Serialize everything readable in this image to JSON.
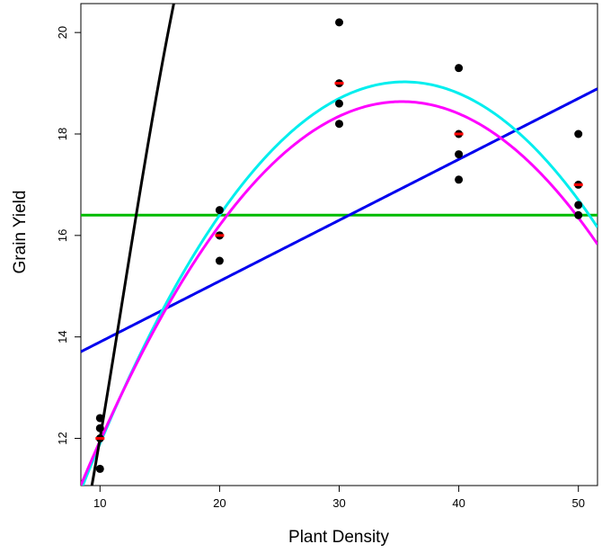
{
  "chart_data": {
    "type": "scatter",
    "title": "",
    "xlabel": "Plant Density",
    "ylabel": "Grain Yield",
    "xlim": [
      8.4,
      51.6
    ],
    "ylim": [
      11.07,
      20.57
    ],
    "x_ticks": [
      "10",
      "20",
      "30",
      "40",
      "50"
    ],
    "y_ticks": [
      "12",
      "14",
      "16",
      "18",
      "20"
    ],
    "grid": false,
    "points": {
      "name": "",
      "color": "#000000",
      "x": [
        10,
        10,
        10,
        10,
        20,
        20,
        20,
        20,
        30,
        30,
        30,
        30,
        40,
        40,
        40,
        40,
        50,
        50,
        50,
        50
      ],
      "y": [
        11.4,
        12.2,
        12.4,
        12.0,
        15.5,
        16.0,
        16.5,
        16.0,
        18.2,
        18.6,
        20.2,
        19.0,
        17.1,
        17.6,
        19.3,
        18.0,
        16.4,
        16.6,
        18.0,
        17.0
      ]
    },
    "means": {
      "name": "",
      "color": "#ff0000",
      "x": [
        10,
        20,
        30,
        40,
        50
      ],
      "y": [
        12.0,
        16.0,
        19.0,
        18.0,
        17.0
      ]
    },
    "fitted_curves": [
      {
        "name": "",
        "color": "#00bb00",
        "degree": 0,
        "coefficients": [
          16.4
        ]
      },
      {
        "name": "",
        "color": "#0000ee",
        "degree": 1,
        "coefficients": [
          12.7,
          0.12
        ]
      },
      {
        "name": "",
        "color": "#00eeee",
        "degree": 2,
        "coefficients": [
          5.2,
          0.78,
          -0.011
        ]
      },
      {
        "name": "",
        "color": "#ff00ff",
        "degree": 2,
        "coefficients": [
          5.6,
          0.74,
          -0.0105
        ]
      },
      {
        "name": "",
        "color": "#000000",
        "degree": 4,
        "coefficients": [
          12.0,
          -2.6,
          0.4,
          -0.016,
          0.0002
        ]
      }
    ]
  }
}
